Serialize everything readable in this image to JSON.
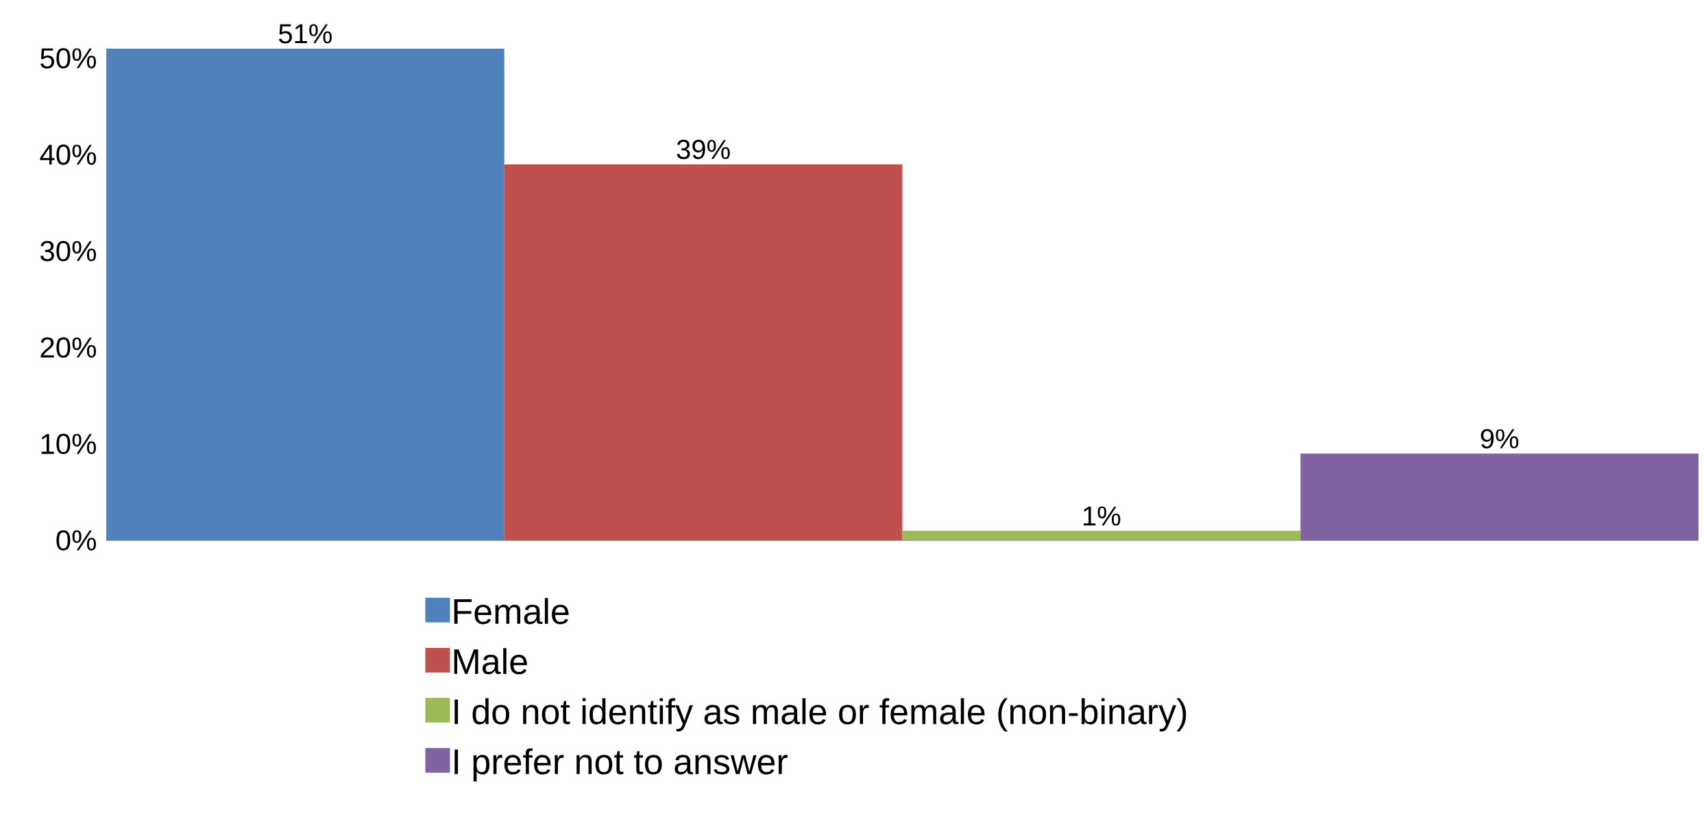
{
  "chart_data": {
    "type": "bar",
    "categories": [
      null
    ],
    "series": [
      {
        "name": "Female",
        "color": "#4f81bd",
        "values": [
          51
        ],
        "value_labels": [
          "51%"
        ]
      },
      {
        "name": "Male",
        "color": "#c0504d",
        "values": [
          39
        ],
        "value_labels": [
          "39%"
        ]
      },
      {
        "name": "I do not identify as male or female (non-binary)",
        "color": "#9bbb59",
        "values": [
          1
        ],
        "value_labels": [
          "1%"
        ]
      },
      {
        "name": "I prefer not to answer",
        "color": "#8064a2",
        "values": [
          9
        ],
        "value_labels": [
          "9%"
        ]
      }
    ],
    "ylim": [
      0,
      51
    ],
    "yticks": [
      {
        "value": 0,
        "label": "0%"
      },
      {
        "value": 10,
        "label": "10%"
      },
      {
        "value": 20,
        "label": "20%"
      },
      {
        "value": 30,
        "label": "30%"
      },
      {
        "value": 40,
        "label": "40%"
      },
      {
        "value": 50,
        "label": "50%"
      }
    ],
    "grid": false,
    "legend": "bottom"
  }
}
